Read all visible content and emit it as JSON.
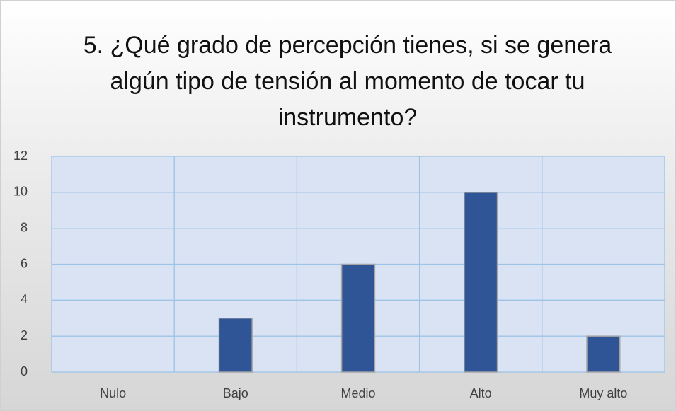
{
  "chart_data": {
    "type": "bar",
    "title": "5. ¿Qué grado de percepción tienes, si se genera algún tipo de tensión al momento de tocar tu instrumento?",
    "categories": [
      "Nulo",
      "Bajo",
      "Medio",
      "Alto",
      "Muy alto"
    ],
    "values": [
      0,
      3,
      6,
      10,
      2
    ],
    "color": "#2f5597",
    "ylim": [
      0,
      12
    ],
    "yticks": [
      0,
      2,
      4,
      6,
      8,
      10,
      12
    ],
    "grid": true
  }
}
